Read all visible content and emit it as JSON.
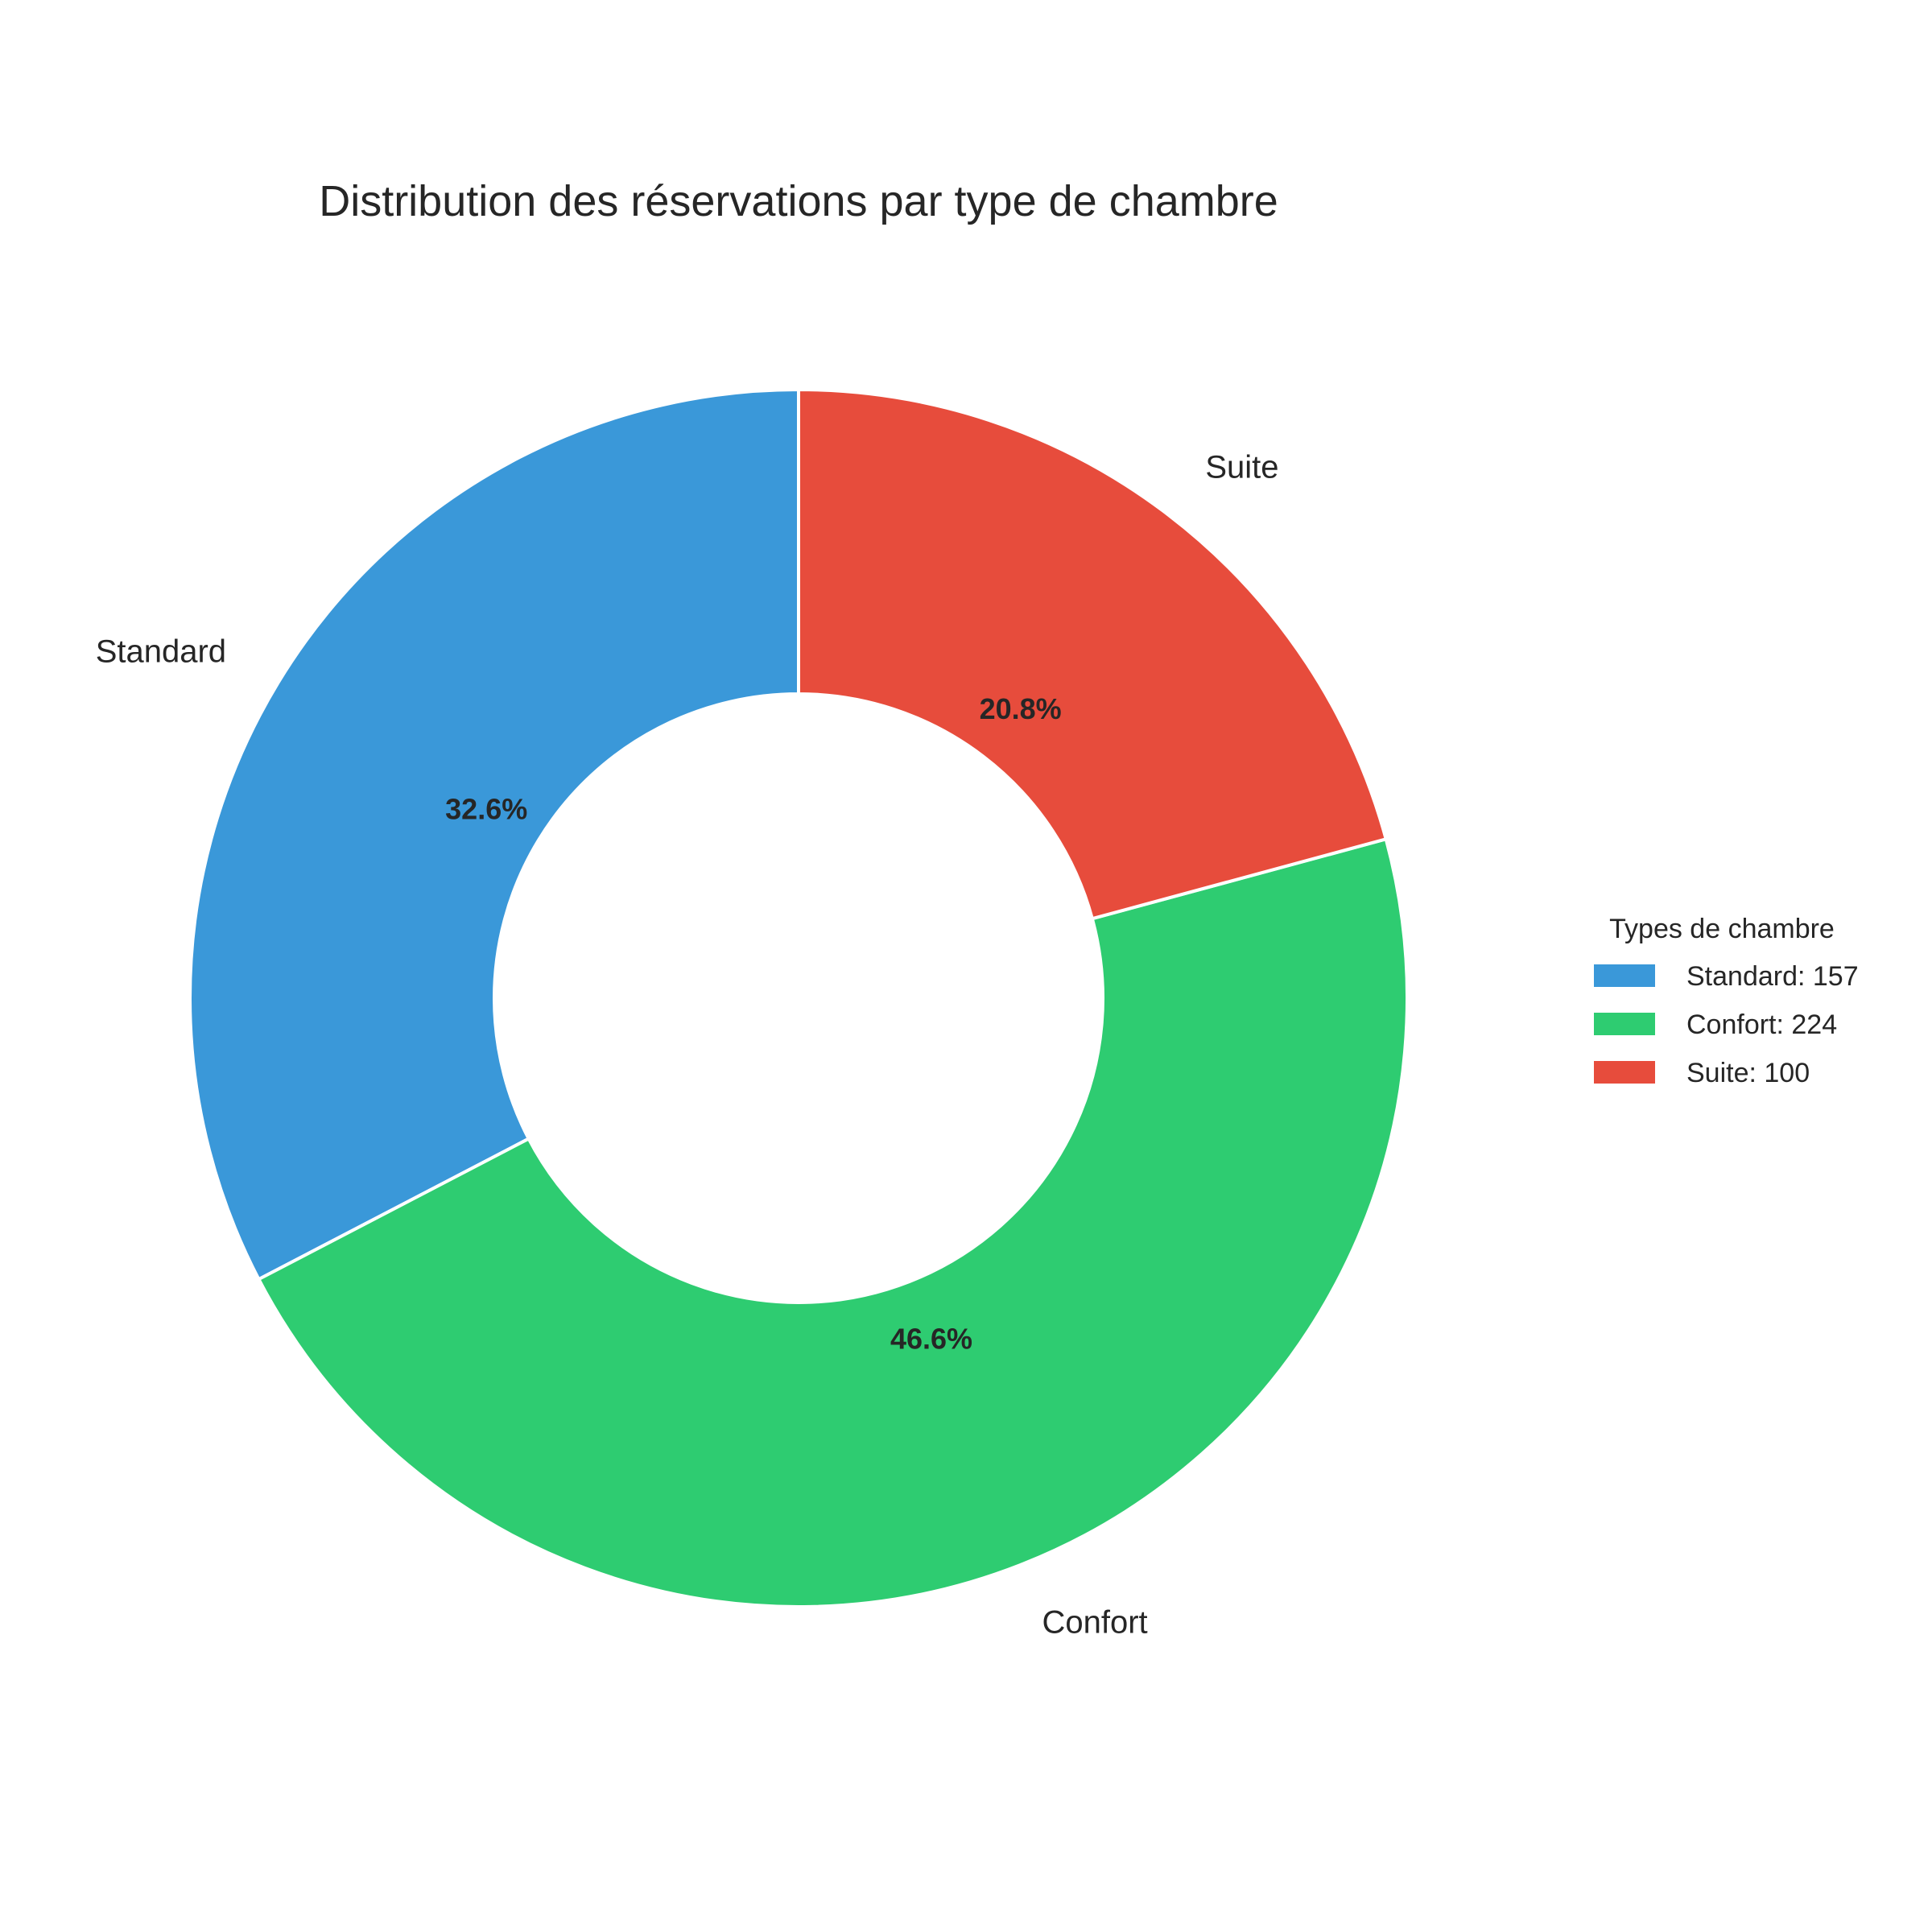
{
  "chart_data": {
    "type": "pie",
    "variant": "donut",
    "title": "Distribution des réservations par type de chambre",
    "categories": [
      "Standard",
      "Confort",
      "Suite"
    ],
    "values": [
      157,
      224,
      100
    ],
    "percent_labels": [
      "32.6%",
      "46.6%",
      "20.8%"
    ],
    "colors": [
      "#3a98d9",
      "#2ecc71",
      "#e74c3c"
    ],
    "legend": {
      "title": "Types de chambre",
      "placement": "right",
      "entries": [
        "Standard: 157",
        "Confort: 224",
        "Suite: 100"
      ]
    }
  }
}
